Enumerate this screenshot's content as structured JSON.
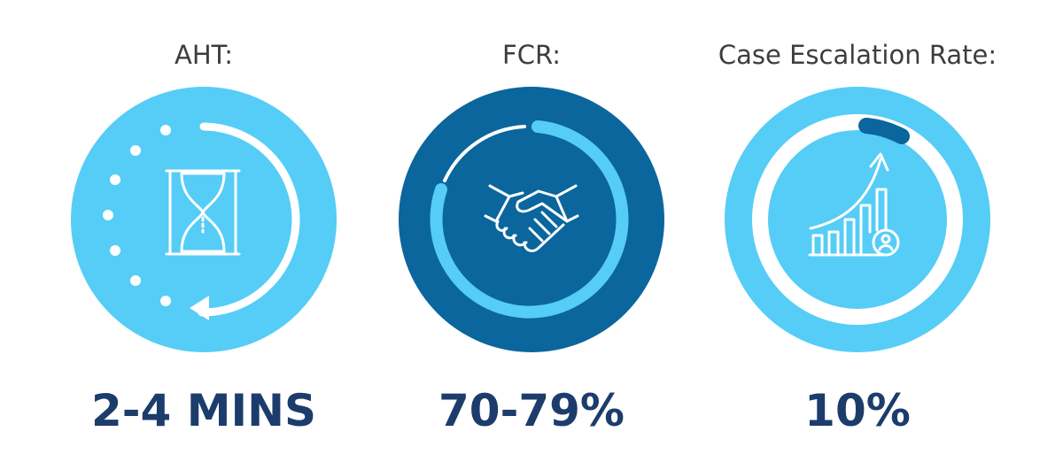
{
  "metrics": [
    {
      "label": "AHT:",
      "value": "2-4 MINS"
    },
    {
      "label": "FCR:",
      "value": "70-79%"
    },
    {
      "label": "Case Escalation Rate:",
      "value": "10%"
    }
  ]
}
